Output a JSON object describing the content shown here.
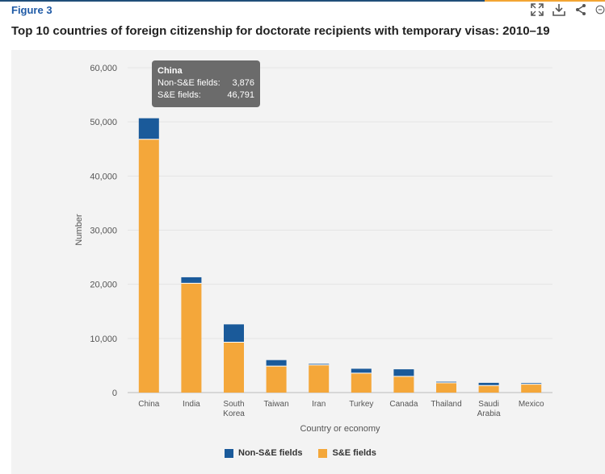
{
  "figure_label": "Figure 3",
  "title": "Top 10 countries of foreign citizenship for doctorate recipients with temporary visas: 2010–19",
  "toolbar": {
    "icons": [
      "expand-icon",
      "download-icon",
      "share-icon",
      "more-icon"
    ]
  },
  "colors": {
    "non_se": "#1a5a9a",
    "se": "#f4a73a"
  },
  "tooltip": {
    "title": "China",
    "rows": [
      {
        "label": "Non-S&E fields:",
        "value": "3,876"
      },
      {
        "label": "S&E fields:",
        "value": "46,791"
      }
    ]
  },
  "legend": {
    "non_se": "Non-S&E fields",
    "se": "S&E fields"
  },
  "chart_data": {
    "type": "bar",
    "stacked": true,
    "title": "Top 10 countries of foreign citizenship for doctorate recipients with temporary visas: 2010–19",
    "xlabel": "Country or economy",
    "ylabel": "Number",
    "ylim": [
      0,
      60000
    ],
    "yticks": [
      0,
      10000,
      20000,
      30000,
      40000,
      50000,
      60000
    ],
    "ytick_labels": [
      "0",
      "10,000",
      "20,000",
      "30,000",
      "40,000",
      "50,000",
      "60,000"
    ],
    "categories": [
      "China",
      "India",
      "South Korea",
      "Taiwan",
      "Iran",
      "Turkey",
      "Canada",
      "Thailand",
      "Saudi Arabia",
      "Mexico"
    ],
    "category_lines": [
      [
        "China"
      ],
      [
        "India"
      ],
      [
        "South",
        "Korea"
      ],
      [
        "Taiwan"
      ],
      [
        "Iran"
      ],
      [
        "Turkey"
      ],
      [
        "Canada"
      ],
      [
        "Thailand"
      ],
      [
        "Saudi",
        "Arabia"
      ],
      [
        "Mexico"
      ]
    ],
    "series": [
      {
        "name": "S&E fields",
        "values": [
          46791,
          20200,
          9300,
          4900,
          5100,
          3600,
          3000,
          1800,
          1300,
          1550
        ]
      },
      {
        "name": "Non-S&E fields",
        "values": [
          3876,
          1100,
          3300,
          1100,
          200,
          800,
          1300,
          200,
          500,
          200
        ]
      }
    ],
    "legend_position": "bottom"
  }
}
